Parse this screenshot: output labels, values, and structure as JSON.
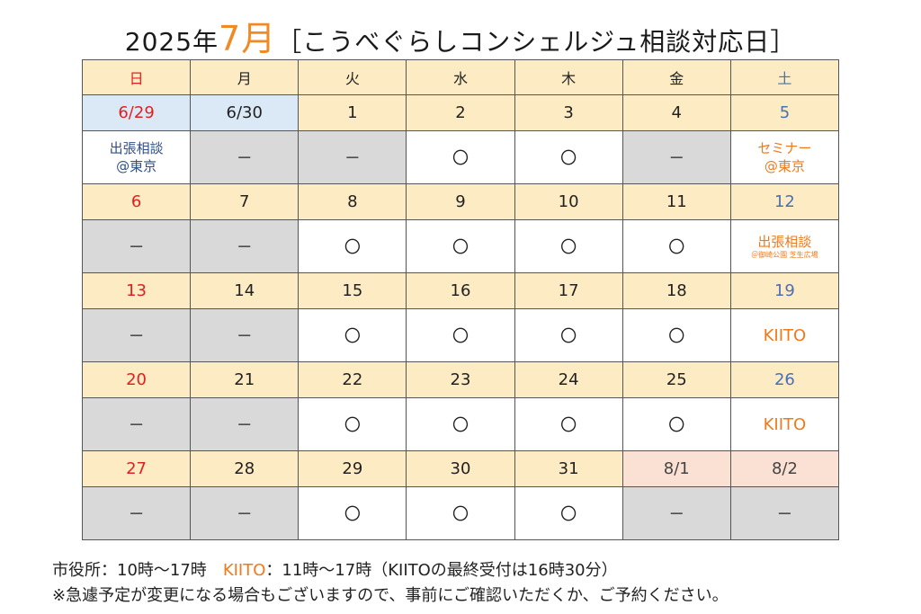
{
  "title": {
    "prefix": "2025年",
    "month": "7月",
    "suffix": "［こうべぐらしコンシェルジュ相談対応日］"
  },
  "weekdays": [
    "日",
    "月",
    "火",
    "水",
    "木",
    "金",
    "土"
  ],
  "weeks": [
    {
      "dates": [
        "6/29",
        "6/30",
        "1",
        "2",
        "3",
        "4",
        "5"
      ],
      "status": [
        [
          "出張相談",
          "@東京"
        ],
        "－",
        "－",
        "〇",
        "〇",
        "－",
        [
          "セミナー",
          "@東京"
        ]
      ]
    },
    {
      "dates": [
        "6",
        "7",
        "8",
        "9",
        "10",
        "11",
        "12"
      ],
      "status": [
        "－",
        "－",
        "〇",
        "〇",
        "〇",
        "〇",
        [
          "出張相談",
          "＠御崎公園 芝生広場"
        ]
      ]
    },
    {
      "dates": [
        "13",
        "14",
        "15",
        "16",
        "17",
        "18",
        "19"
      ],
      "status": [
        "－",
        "－",
        "〇",
        "〇",
        "〇",
        "〇",
        "KIITO"
      ]
    },
    {
      "dates": [
        "20",
        "21",
        "22",
        "23",
        "24",
        "25",
        "26"
      ],
      "status": [
        "－",
        "－",
        "〇",
        "〇",
        "〇",
        "〇",
        "KIITO"
      ]
    },
    {
      "dates": [
        "27",
        "28",
        "29",
        "30",
        "31",
        "8/1",
        "8/2"
      ],
      "status": [
        "－",
        "－",
        "〇",
        "〇",
        "〇",
        "－",
        "－"
      ]
    }
  ],
  "notes": {
    "line1_a": "市役所：10時～17時　",
    "line1_kiito": "KIITO",
    "line1_b": "：11時～17時（KIITOの最終受付は16時30分）",
    "line2": "※急遽予定が変更になる場合もございますので、事前にご確認いただくか、ご予約ください。"
  },
  "colors": {
    "sunday": "#e02020",
    "saturday": "#4a6fb5",
    "accent": "#f07a1a",
    "header_bg": "#fdebc4",
    "closed_bg": "#d9d9d9"
  }
}
